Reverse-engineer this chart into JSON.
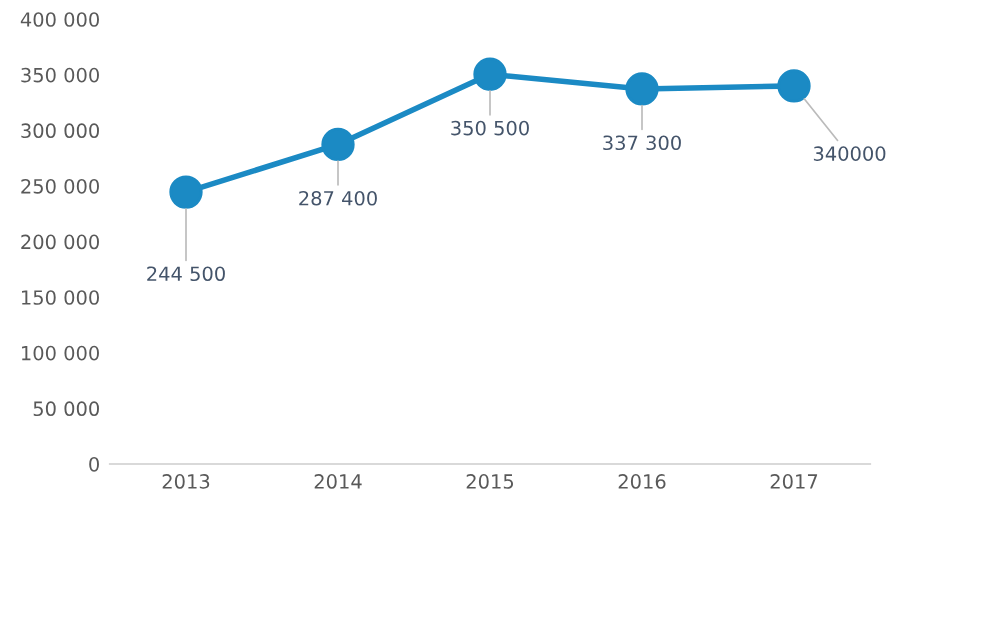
{
  "chart_data": {
    "type": "line",
    "categories": [
      "2013",
      "2014",
      "2015",
      "2016",
      "2017"
    ],
    "series": [
      {
        "color": "#1b8ac4",
        "values": [
          244500,
          287400,
          350500,
          337300,
          340000
        ],
        "value_labels": [
          "244 500",
          "287 400",
          "350 500",
          "337 300",
          "340000"
        ]
      }
    ],
    "ylim": [
      0,
      400000
    ],
    "yticks": [
      {
        "value": 0,
        "label": "0"
      },
      {
        "value": 50000,
        "label": "50 000"
      },
      {
        "value": 100000,
        "label": "100 000"
      },
      {
        "value": 150000,
        "label": "150 000"
      },
      {
        "value": 200000,
        "label": "200 000"
      },
      {
        "value": 250000,
        "label": "250 000"
      },
      {
        "value": 300000,
        "label": "300 000"
      },
      {
        "value": 350000,
        "label": "350 000"
      },
      {
        "value": 400000,
        "label": "400 000"
      }
    ],
    "marker": "circle",
    "line_style": "solid",
    "grid": false
  }
}
